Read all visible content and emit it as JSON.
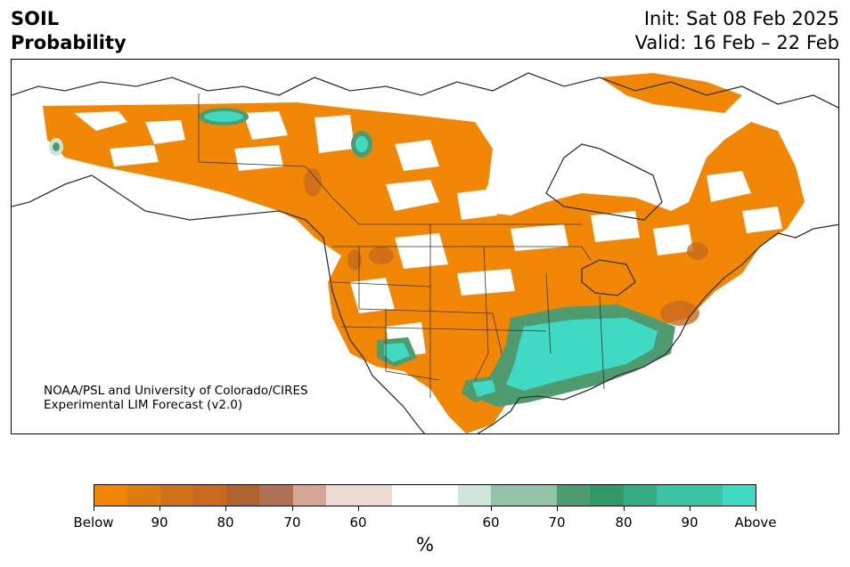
{
  "header": {
    "variable": "SOIL",
    "type": "Probability",
    "init": "Init: Sat 08 Feb 2025",
    "valid": "Valid: 16 Feb – 22 Feb"
  },
  "credit": {
    "line1": "NOAA/PSL and University of Colorado/CIRES",
    "line2": "Experimental LIM Forecast (v2.0)"
  },
  "colorbar": {
    "unit": "%",
    "ticks": [
      "Below",
      "90",
      "80",
      "70",
      "60",
      "60",
      "70",
      "80",
      "90",
      "Above"
    ],
    "colors": {
      "below_strong": "#f28705",
      "below_mid": "#c96a1f",
      "below_weak": "#d4a794",
      "neutral": "#ffffff",
      "above_weak": "#cfe5da",
      "above_mid": "#4d9b6e",
      "above_strong": "#3fd9c4"
    }
  }
}
